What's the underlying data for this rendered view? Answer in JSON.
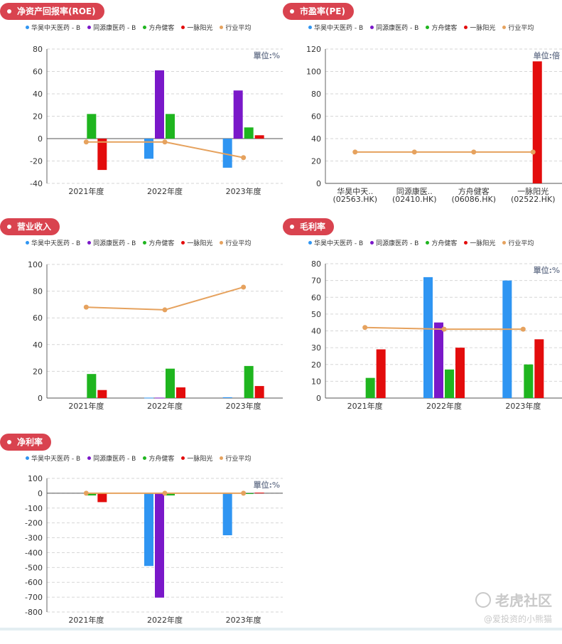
{
  "colors": {
    "华昊中天医药 - B": "#2f95f2",
    "同源康医药 - B": "#7a18c9",
    "方舟健客": "#1fb51f",
    "一脉阳光": "#e30c0c",
    "行业平均": "#e6a25e"
  },
  "legend": [
    "华昊中天医药 - B",
    "同源康医药 - B",
    "方舟健客",
    "一脉阳光",
    "行业平均"
  ],
  "panels": [
    {
      "title": "净资产回报率(ROE)",
      "show_legend": true
    },
    {
      "title": "市盈率(PE)",
      "show_legend": true
    },
    {
      "title": "营业收入",
      "show_legend": true
    },
    {
      "title": "毛利率",
      "show_legend": true
    },
    {
      "title": "净利率",
      "show_legend": true
    }
  ],
  "watermark": {
    "brand": "老虎社区",
    "user": "@爱投资的小熊猫"
  },
  "chart_data": [
    {
      "type": "bar",
      "title": "净资产回报率(ROE)",
      "unit": "單位:%",
      "categories": [
        "2021年度",
        "2022年度",
        "2023年度"
      ],
      "ylim": [
        -40,
        80
      ],
      "yticks": [
        -40,
        -20,
        0,
        20,
        40,
        60,
        80
      ],
      "series": [
        {
          "name": "华昊中天医药 - B",
          "values": [
            null,
            -18,
            -26
          ]
        },
        {
          "name": "同源康医药 - B",
          "values": [
            null,
            61,
            43
          ]
        },
        {
          "name": "方舟健客",
          "values": [
            22,
            22,
            10
          ]
        },
        {
          "name": "一脉阳光",
          "values": [
            -28,
            null,
            3
          ]
        }
      ],
      "line": {
        "name": "行业平均",
        "values": [
          -3,
          -3,
          -17
        ]
      }
    },
    {
      "type": "bar",
      "title": "市盈率(PE)",
      "unit": "单位:倍",
      "categories": [
        "华昊中天..\n(02563.HK)",
        "同源康医..\n(02410.HK)",
        "方舟健客\n(06086.HK)",
        "一脉阳光\n(02522.HK)"
      ],
      "ylim": [
        0,
        120
      ],
      "yticks": [
        0,
        20,
        40,
        60,
        80,
        100,
        120
      ],
      "values": [
        null,
        null,
        null,
        109
      ],
      "bar_colors": [
        "#2f95f2",
        "#7a18c9",
        "#1fb51f",
        "#e30c0c"
      ],
      "line": {
        "name": "行业平均",
        "values": [
          28,
          28,
          28,
          28
        ]
      }
    },
    {
      "type": "bar",
      "title": "营业收入",
      "unit": "",
      "categories": [
        "2021年度",
        "2022年度",
        "2023年度"
      ],
      "ylim": [
        0,
        100
      ],
      "yticks": [
        0,
        20,
        40,
        60,
        80,
        100
      ],
      "series": [
        {
          "name": "华昊中天医药 - B",
          "values": [
            null,
            0.3,
            0.6
          ]
        },
        {
          "name": "同源康医药 - B",
          "values": [
            null,
            0.3,
            null
          ]
        },
        {
          "name": "方舟健客",
          "values": [
            18,
            22,
            24
          ]
        },
        {
          "name": "一脉阳光",
          "values": [
            6,
            8,
            9
          ]
        }
      ],
      "line": {
        "name": "行业平均",
        "values": [
          68,
          66,
          83
        ]
      }
    },
    {
      "type": "bar",
      "title": "毛利率",
      "unit": "單位:%",
      "categories": [
        "2021年度",
        "2022年度",
        "2023年度"
      ],
      "ylim": [
        0,
        80
      ],
      "yticks": [
        0,
        10,
        20,
        30,
        40,
        50,
        60,
        70,
        80
      ],
      "series": [
        {
          "name": "华昊中天医药 - B",
          "values": [
            null,
            72,
            70
          ]
        },
        {
          "name": "同源康医药 - B",
          "values": [
            null,
            45,
            null
          ]
        },
        {
          "name": "方舟健客",
          "values": [
            12,
            17,
            20
          ]
        },
        {
          "name": "一脉阳光",
          "values": [
            29,
            30,
            35
          ]
        }
      ],
      "line": {
        "name": "行业平均",
        "values": [
          42,
          41,
          41
        ]
      }
    },
    {
      "type": "bar",
      "title": "净利率",
      "unit": "單位:%",
      "categories": [
        "2021年度",
        "2022年度",
        "2023年度"
      ],
      "ylim": [
        -800,
        100
      ],
      "yticks": [
        -800,
        -700,
        -600,
        -500,
        -400,
        -300,
        -200,
        -100,
        0,
        100
      ],
      "series": [
        {
          "name": "华昊中天医药 - B",
          "values": [
            null,
            -490,
            -283
          ]
        },
        {
          "name": "同源康医药 - B",
          "values": [
            null,
            -703,
            null
          ]
        },
        {
          "name": "方舟健客",
          "values": [
            -15,
            -15,
            -5
          ]
        },
        {
          "name": "一脉阳光",
          "values": [
            -60,
            null,
            4
          ]
        }
      ],
      "line": {
        "name": "行业平均",
        "values": [
          0,
          0,
          0
        ]
      }
    }
  ]
}
